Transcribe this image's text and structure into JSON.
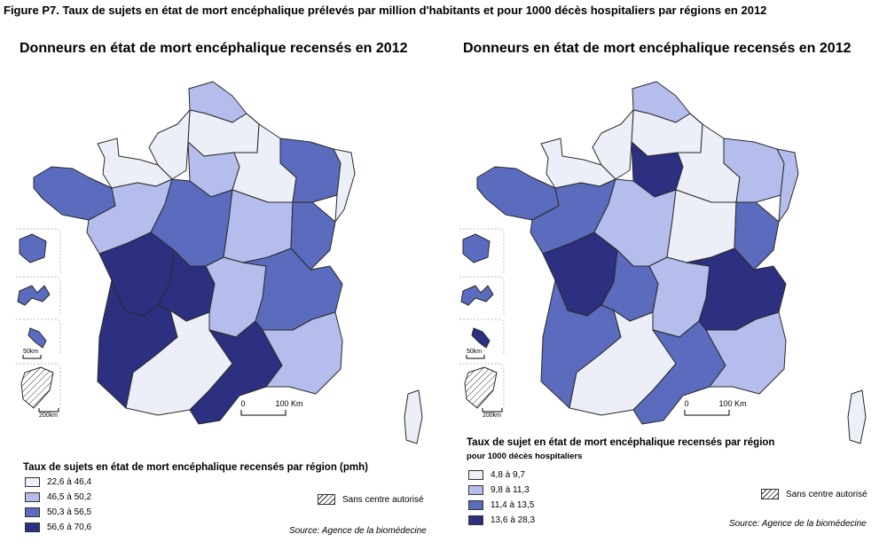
{
  "figure_title": "Figure P7. Taux de sujets en état de mort encéphalique prélevés par million d'habitants et pour 1000 décès hospitaliers par régions en 2012",
  "colors": {
    "c1": "#eceef8",
    "c2": "#b4bdec",
    "c3": "#5b6bbd",
    "c4": "#2d2f80",
    "stroke": "#2a2a2a"
  },
  "maps": [
    {
      "title": "Donneurs en état de mort encéphalique recensés en 2012",
      "legend_title": "Taux de sujets en état de mort encéphalique recensés par région (pmh)",
      "legend_subtitle": "",
      "legend": [
        {
          "label": "22,6 à 46,4",
          "color": "#eceef8"
        },
        {
          "label": "46,5 à 50,2",
          "color": "#b4bdec"
        },
        {
          "label": "50,3 à 56,5",
          "color": "#5b6bbd"
        },
        {
          "label": "56,6 à 70,6",
          "color": "#2d2f80"
        }
      ],
      "regions": {
        "nord": 2,
        "picardie": 1,
        "haute_normandie": 1,
        "basse_normandie": 1,
        "bretagne": 3,
        "idf": 2,
        "champagne": 1,
        "lorraine": 3,
        "alsace": 1,
        "pays_loire": 2,
        "centre": 3,
        "bourgogne": 2,
        "franche_comte": 3,
        "poitou": 4,
        "limousin": 4,
        "auvergne": 2,
        "rhone_alpes": 3,
        "aquitaine": 4,
        "midi_pyrenees": 1,
        "languedoc": 4,
        "paca": 2,
        "corse": 1,
        "reunion": 3,
        "guadeloupe": 3,
        "martinique": 3,
        "guyane": 0
      },
      "no_center_label": "Sans centre autorisé",
      "source": "Source: Agence de la biomédecine",
      "scale": {
        "zero": "0",
        "label": "100 Km"
      },
      "inset_scales": {
        "small": "50km",
        "large": "200km"
      }
    },
    {
      "title": "Donneurs en état de mort encéphalique recensés en 2012",
      "legend_title": "Taux de sujet en état de mort encéphalique recensés par région",
      "legend_subtitle": "pour 1000 décès hospitaliers",
      "legend": [
        {
          "label": "4,8 à 9,7",
          "color": "#eceef8"
        },
        {
          "label": "9,8 à 11,3",
          "color": "#b4bdec"
        },
        {
          "label": "11,4 à 13,5",
          "color": "#5b6bbd"
        },
        {
          "label": "13,6 à 28,3",
          "color": "#2d2f80"
        }
      ],
      "regions": {
        "nord": 2,
        "picardie": 1,
        "haute_normandie": 1,
        "basse_normandie": 1,
        "bretagne": 3,
        "idf": 4,
        "champagne": 1,
        "lorraine": 2,
        "alsace": 2,
        "pays_loire": 3,
        "centre": 2,
        "bourgogne": 1,
        "franche_comte": 3,
        "poitou": 4,
        "limousin": 3,
        "auvergne": 2,
        "rhone_alpes": 4,
        "aquitaine": 3,
        "midi_pyrenees": 1,
        "languedoc": 3,
        "paca": 2,
        "corse": 1,
        "reunion": 3,
        "guadeloupe": 3,
        "martinique": 4,
        "guyane": 0
      },
      "no_center_label": "Sans centre autorisé",
      "source": "Source: Agence de la biomédecine",
      "scale": {
        "zero": "0",
        "label": "100 Km"
      },
      "inset_scales": {
        "small": "50km",
        "large": "200km"
      }
    }
  ]
}
